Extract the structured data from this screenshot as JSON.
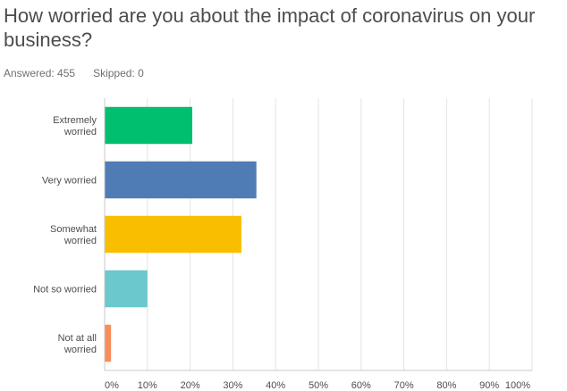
{
  "question": {
    "title": "How worried are you about the impact of coronavirus on your business?",
    "answered": "Answered: 455",
    "skipped": "Skipped: 0"
  },
  "chart_data": {
    "type": "bar",
    "orientation": "horizontal",
    "categories": [
      [
        "Extremely",
        "worried"
      ],
      [
        "Very worried"
      ],
      [
        "Somewhat",
        "worried"
      ],
      [
        "Not so worried"
      ],
      [
        "Not at all",
        "worried"
      ]
    ],
    "values": [
      20.5,
      35.5,
      32,
      10,
      1.5
    ],
    "colors": [
      "#00bf6f",
      "#507cb6",
      "#f9be00",
      "#6bc8cd",
      "#f78d5a"
    ],
    "x_ticks": [
      "0%",
      "10%",
      "20%",
      "30%",
      "40%",
      "50%",
      "60%",
      "70%",
      "80%",
      "90%",
      "100%"
    ],
    "xlim": [
      0,
      100
    ],
    "grid": true,
    "title": "",
    "xlabel": "",
    "ylabel": ""
  }
}
